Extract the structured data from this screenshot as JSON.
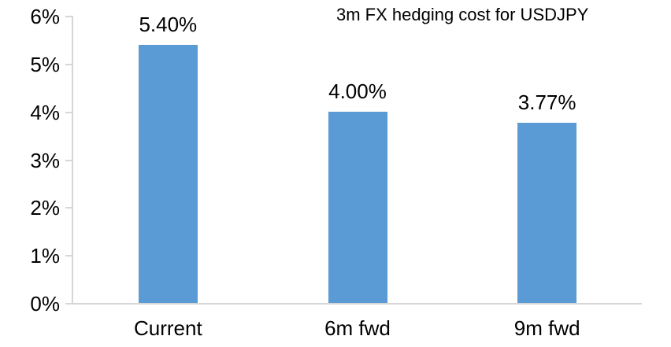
{
  "chart_data": {
    "type": "bar",
    "title": "3m FX hedging cost for USDJPY",
    "categories": [
      "Current",
      "6m fwd",
      "9m fwd"
    ],
    "values": [
      5.4,
      4.0,
      3.77
    ],
    "value_labels": [
      "5.40%",
      "4.00%",
      "3.77%"
    ],
    "xlabel": "",
    "ylabel": "",
    "ylim": [
      0,
      6
    ],
    "ytick_values": [
      0,
      1,
      2,
      3,
      4,
      5,
      6
    ],
    "ytick_labels": [
      "0%",
      "1%",
      "2%",
      "3%",
      "4%",
      "5%",
      "6%"
    ],
    "grid": false,
    "legend": false,
    "colors": {
      "bar": "#5B9BD5",
      "axis": "#D6D6D6",
      "text": "#000000",
      "background": "#FFFFFF"
    }
  }
}
